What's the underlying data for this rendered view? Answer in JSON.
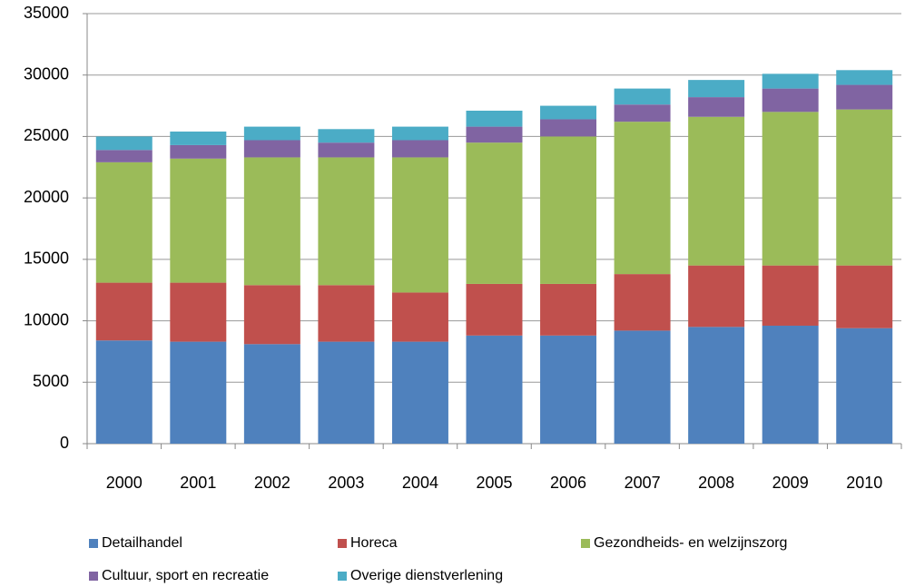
{
  "chart_data": {
    "type": "stacked_bar",
    "categories": [
      "2000",
      "2001",
      "2002",
      "2003",
      "2004",
      "2005",
      "2006",
      "2007",
      "2008",
      "2009",
      "2010"
    ],
    "series": [
      {
        "name": "Detailhandel",
        "color": "#4f81bd",
        "values": [
          8400,
          8300,
          8100,
          8300,
          8300,
          8800,
          8800,
          9200,
          9500,
          9600,
          9400
        ]
      },
      {
        "name": "Horeca",
        "color": "#c0504d",
        "values": [
          4700,
          4800,
          4800,
          4600,
          4000,
          4200,
          4200,
          4600,
          5000,
          4900,
          5100
        ]
      },
      {
        "name": "Gezondheids- en welzijnszorg",
        "color": "#9bbb59",
        "values": [
          9800,
          10100,
          10400,
          10400,
          11000,
          11500,
          12000,
          12400,
          12100,
          12500,
          12700
        ]
      },
      {
        "name": "Cultuur, sport en recreatie",
        "color": "#8064a2",
        "values": [
          1000,
          1100,
          1400,
          1200,
          1400,
          1300,
          1400,
          1400,
          1600,
          1900,
          2000
        ]
      },
      {
        "name": "Overige dienstverlening",
        "color": "#4bacc6",
        "values": [
          1100,
          1100,
          1100,
          1100,
          1100,
          1300,
          1100,
          1300,
          1400,
          1200,
          1200
        ]
      }
    ],
    "ylim": [
      0,
      35000
    ],
    "yticks": [
      0,
      5000,
      10000,
      15000,
      20000,
      25000,
      30000,
      35000
    ],
    "grid": true,
    "legend": "bottom"
  }
}
